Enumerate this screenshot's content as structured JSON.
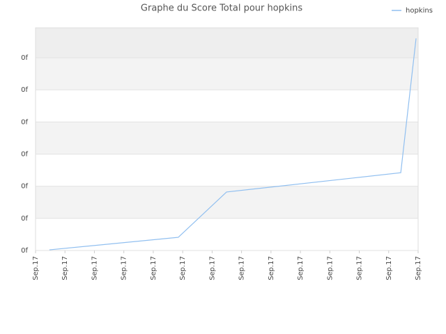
{
  "chart_data": {
    "type": "line",
    "title": "Graphe du Score Total pour hopkins",
    "series": [
      {
        "name": "hopkins",
        "color": "#90bff0",
        "x": [
          0.47,
          4.85,
          6.49,
          12.41,
          12.93
        ],
        "values": [
          0.02,
          0.41,
          1.82,
          2.42,
          6.6
        ]
      }
    ],
    "xlim": [
      0,
      13
    ],
    "xticks": [
      {
        "value": 0,
        "label": "Sep.17"
      },
      {
        "value": 1,
        "label": "Sep.17"
      },
      {
        "value": 2,
        "label": "Sep.17"
      },
      {
        "value": 3,
        "label": "Sep.17"
      },
      {
        "value": 4,
        "label": "Sep.17"
      },
      {
        "value": 5,
        "label": "Sep.17"
      },
      {
        "value": 6,
        "label": "Sep.17"
      },
      {
        "value": 7,
        "label": "Sep.17"
      },
      {
        "value": 8,
        "label": "Sep.17"
      },
      {
        "value": 9,
        "label": "Sep.17"
      },
      {
        "value": 10,
        "label": "Sep.17"
      },
      {
        "value": 11,
        "label": "Sep.17"
      },
      {
        "value": 12,
        "label": "Sep.17"
      },
      {
        "value": 13,
        "label": "Sep.17"
      }
    ],
    "ylim": [
      0,
      6.93
    ],
    "yticks": [
      {
        "value": 0,
        "label": "0f"
      },
      {
        "value": 1,
        "label": "0f"
      },
      {
        "value": 2,
        "label": "0f"
      },
      {
        "value": 3,
        "label": "0f"
      },
      {
        "value": 4,
        "label": "0f"
      },
      {
        "value": 5,
        "label": "0f"
      },
      {
        "value": 6,
        "label": "0f"
      }
    ],
    "grid": true,
    "legend": "top-right"
  }
}
